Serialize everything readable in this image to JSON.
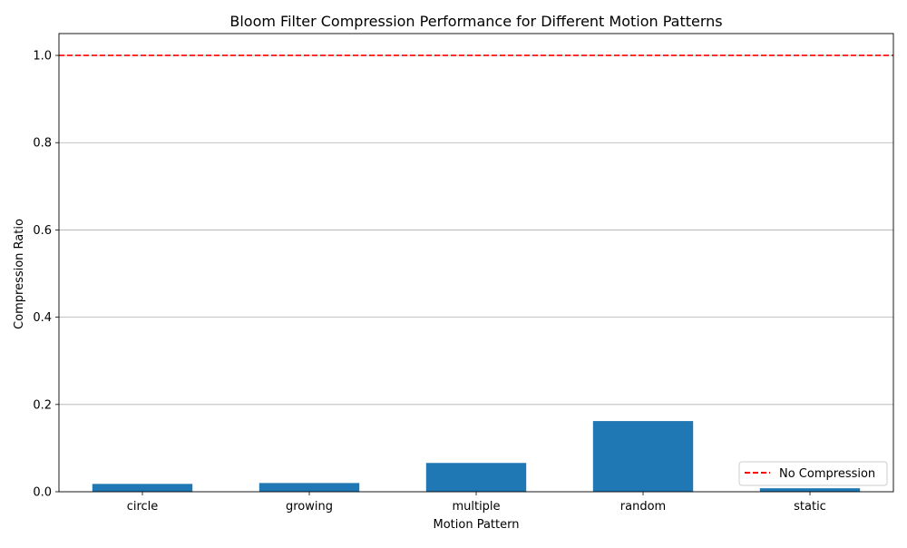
{
  "chart_data": {
    "type": "bar",
    "title": "Bloom Filter Compression Performance for Different Motion Patterns",
    "xlabel": "Motion Pattern",
    "ylabel": "Compression Ratio",
    "categories": [
      "circle",
      "growing",
      "multiple",
      "random",
      "static"
    ],
    "values": [
      0.018,
      0.02,
      0.066,
      0.162,
      0.008
    ],
    "ylim": [
      0,
      1.05
    ],
    "yticks": [
      "0.0",
      "0.2",
      "0.4",
      "0.6",
      "0.8",
      "1.0"
    ],
    "ytick_values": [
      0.0,
      0.2,
      0.4,
      0.6,
      0.8,
      1.0
    ],
    "grid": "y-axis horizontal lines",
    "bar_color": "#1f77b4",
    "reference_line": {
      "label": "No Compression",
      "value": 1.0,
      "color": "#ff0000",
      "style": "dashed"
    },
    "legend": {
      "placement": "bottom-right",
      "entries": [
        "No Compression"
      ]
    }
  }
}
